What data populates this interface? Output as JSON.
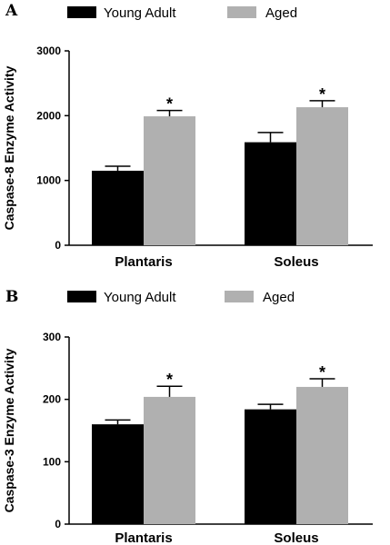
{
  "chart_data": [
    {
      "type": "bar",
      "panel_label": "A",
      "ylabel": "Caspase-8 Enzyme Activity",
      "ylim": [
        0,
        3000
      ],
      "yticks": [
        "0",
        "1000",
        "2000",
        "3000"
      ],
      "categories": [
        "Plantaris",
        "Soleus"
      ],
      "legend_position": "top",
      "series": [
        {
          "name": "Young Adult",
          "color": "#000000",
          "values": [
            1150,
            1590
          ],
          "errors": [
            70,
            150
          ]
        },
        {
          "name": "Aged",
          "color": "#b0b0b0",
          "values": [
            1990,
            2130
          ],
          "errors": [
            90,
            100
          ]
        }
      ],
      "annotations": [
        {
          "category": "Plantaris",
          "series": "Aged",
          "text": "*"
        },
        {
          "category": "Soleus",
          "series": "Aged",
          "text": "*"
        }
      ]
    },
    {
      "type": "bar",
      "panel_label": "B",
      "ylabel": "Caspase-3 Enzyme Activity",
      "ylim": [
        0,
        300
      ],
      "yticks": [
        "0",
        "100",
        "200",
        "300"
      ],
      "categories": [
        "Plantaris",
        "Soleus"
      ],
      "legend_position": "top",
      "series": [
        {
          "name": "Young Adult",
          "color": "#000000",
          "values": [
            160,
            184
          ],
          "errors": [
            7,
            8
          ]
        },
        {
          "name": "Aged",
          "color": "#b0b0b0",
          "values": [
            204,
            220
          ],
          "errors": [
            17,
            13
          ]
        }
      ],
      "annotations": [
        {
          "category": "Plantaris",
          "series": "Aged",
          "text": "*"
        },
        {
          "category": "Soleus",
          "series": "Aged",
          "text": "*"
        }
      ]
    }
  ]
}
